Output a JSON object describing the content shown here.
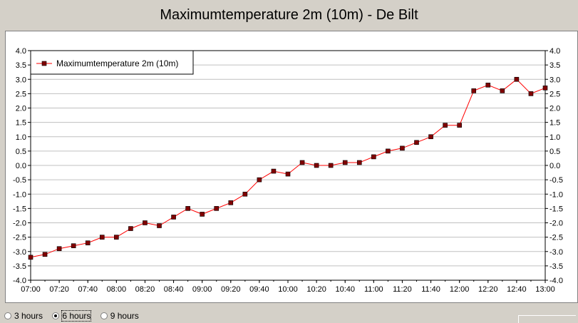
{
  "window": {
    "title": "Maximumtemperature 2m (10m) - De Bilt"
  },
  "controls": {
    "options": [
      {
        "label": "3 hours",
        "checked": false
      },
      {
        "label": "6 hours",
        "checked": true
      },
      {
        "label": "9 hours",
        "checked": false
      }
    ]
  },
  "colors": {
    "series_line": "#ff0000",
    "marker_fill": "#800000",
    "grid": "#c0c0c0"
  },
  "chart_data": {
    "type": "line",
    "title": "Maximumtemperature 2m (10m) - De Bilt",
    "legend_position": "top-left",
    "grid": true,
    "ylim": [
      -4.0,
      4.0
    ],
    "y_ticks": [
      "4.0",
      "3.5",
      "3.0",
      "2.5",
      "2.0",
      "1.5",
      "1.0",
      "0.5",
      "0.0",
      "-0.5",
      "-1.0",
      "-1.5",
      "-2.0",
      "-2.5",
      "-3.0",
      "-3.5",
      "-4.0"
    ],
    "x_ticks": [
      "07:00",
      "07:20",
      "07:40",
      "08:00",
      "08:20",
      "08:40",
      "09:00",
      "09:20",
      "09:40",
      "10:00",
      "10:20",
      "10:40",
      "11:00",
      "11:20",
      "11:40",
      "12:00",
      "12:20",
      "12:40",
      "13:00"
    ],
    "x": [
      "07:00",
      "07:10",
      "07:20",
      "07:30",
      "07:40",
      "07:50",
      "08:00",
      "08:10",
      "08:20",
      "08:30",
      "08:40",
      "08:50",
      "09:00",
      "09:10",
      "09:20",
      "09:30",
      "09:40",
      "09:50",
      "10:00",
      "10:10",
      "10:20",
      "10:30",
      "10:40",
      "10:50",
      "11:00",
      "11:10",
      "11:20",
      "11:30",
      "11:40",
      "11:50",
      "12:00",
      "12:10",
      "12:20",
      "12:30",
      "12:40",
      "12:50",
      "13:00"
    ],
    "series": [
      {
        "name": "Maximumtemperature 2m (10m)",
        "values": [
          -3.2,
          -3.1,
          -2.9,
          -2.8,
          -2.7,
          -2.5,
          -2.5,
          -2.2,
          -2.0,
          -2.1,
          -1.8,
          -1.5,
          -1.7,
          -1.5,
          -1.3,
          -1.0,
          -0.5,
          -0.2,
          -0.3,
          0.1,
          0.0,
          0.0,
          0.1,
          0.1,
          0.3,
          0.5,
          0.6,
          0.8,
          1.0,
          1.4,
          1.4,
          2.6,
          2.8,
          2.6,
          3.0,
          2.5,
          2.7
        ]
      }
    ]
  }
}
